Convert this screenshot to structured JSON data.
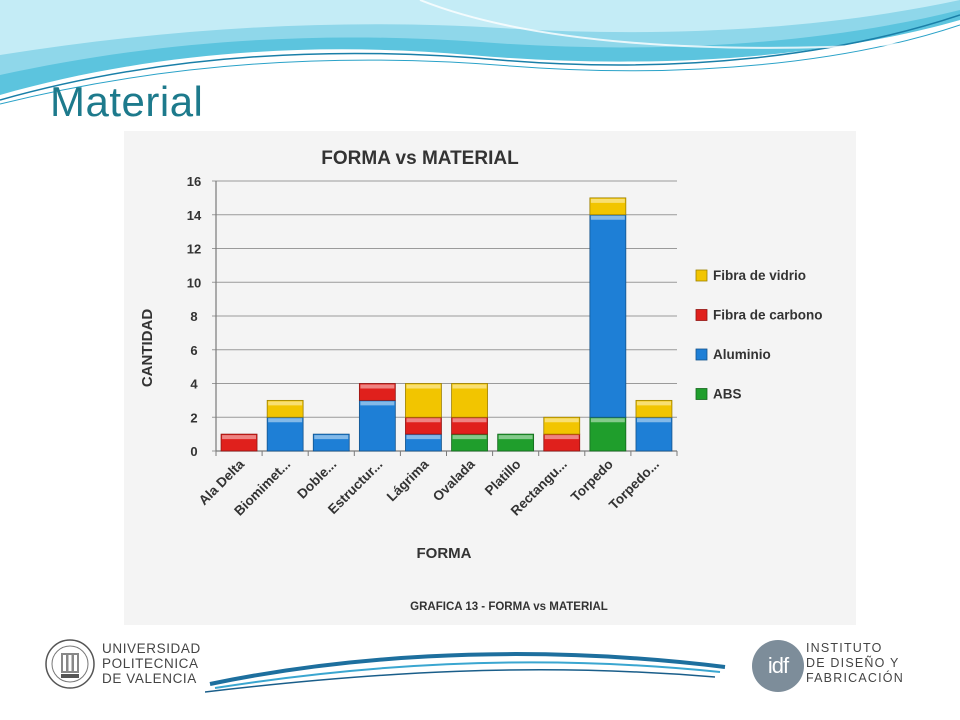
{
  "slide": {
    "title": "Material"
  },
  "chart_data": {
    "type": "bar",
    "stacked": true,
    "title": "FORMA vs MATERIAL",
    "xlabel": "FORMA",
    "ylabel": "CANTIDAD",
    "caption": "GRAFICA 13 - FORMA vs MATERIAL",
    "ylim": [
      0,
      16
    ],
    "yticks": [
      0,
      2,
      4,
      6,
      8,
      10,
      12,
      14,
      16
    ],
    "grid": true,
    "legend_position": "right",
    "categories": [
      "Ala Delta",
      "Biomimet...",
      "Doble...",
      "Estructur...",
      "Lágrima",
      "Ovalada",
      "Platillo",
      "Rectangu...",
      "Torpedo",
      "Torpedo..."
    ],
    "series": [
      {
        "name": "ABS",
        "color": "#1f9e2c",
        "values": [
          0,
          0,
          0,
          0,
          0,
          1,
          1,
          0,
          2,
          0
        ]
      },
      {
        "name": "Aluminio",
        "color": "#1e7fd6",
        "values": [
          0,
          2,
          1,
          3,
          1,
          0,
          0,
          0,
          12,
          2
        ]
      },
      {
        "name": "Fibra de carbono",
        "color": "#e0201c",
        "values": [
          1,
          0,
          0,
          1,
          1,
          1,
          0,
          1,
          0,
          0
        ]
      },
      {
        "name": "Fibra de vidrio",
        "color": "#f2c500",
        "values": [
          0,
          1,
          0,
          0,
          2,
          2,
          0,
          1,
          1,
          1
        ]
      }
    ],
    "legend_order": [
      "Fibra de vidrio",
      "Fibra de carbono",
      "Aluminio",
      "ABS"
    ]
  },
  "footer": {
    "left_logo": {
      "lines": [
        "UNIVERSIDAD",
        "POLITECNICA",
        "DE VALENCIA"
      ],
      "icon": "upv-seal-icon"
    },
    "right_logo": {
      "mark": "idf",
      "lines": [
        "INSTITUTO",
        "DE DISEÑO Y",
        "FABRICACIÓN"
      ],
      "icon": "idf-logo-icon"
    }
  }
}
